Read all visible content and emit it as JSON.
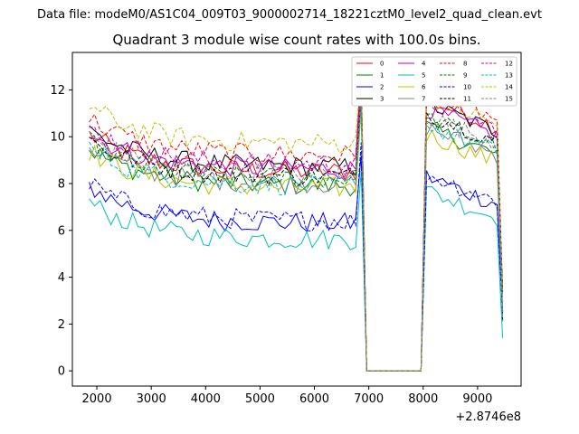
{
  "chart_data": {
    "type": "line",
    "suptitle": "Data file: modeM0/AS1C04_009T03_9000002714_18221cztM0_level2_quad_clean.evt",
    "title": "Quadrant 3 module wise count rates with 100.0s bins.",
    "xlabel": "",
    "ylabel": "",
    "x_offset_label": "+2.8746e8",
    "xlim": [
      1550,
      9800
    ],
    "ylim": [
      -0.65,
      13.6
    ],
    "xticks": [
      2000,
      3000,
      4000,
      5000,
      6000,
      7000,
      8000,
      9000
    ],
    "yticks": [
      0,
      2,
      4,
      6,
      8,
      10,
      12
    ],
    "x_range": {
      "start": 1860,
      "step": 100,
      "bins_first_segment": 50,
      "gap_start": 6960,
      "gap_end": 7960,
      "second_segment_start": 8060,
      "last_x": 9460
    },
    "series": [
      {
        "name": "0",
        "color": "#ff0000",
        "dash": "solid",
        "level1": 8.5,
        "level2": 10.8
      },
      {
        "name": "1",
        "color": "#008000",
        "dash": "solid",
        "level1": 7.9,
        "level2": 9.6
      },
      {
        "name": "2",
        "color": "#0000ff",
        "dash": "solid",
        "level1": 6.3,
        "level2": 7.5
      },
      {
        "name": "3",
        "color": "#000000",
        "dash": "solid",
        "level1": 8.7,
        "level2": 10.6
      },
      {
        "name": "4",
        "color": "#bf00bf",
        "dash": "solid",
        "level1": 8.6,
        "level2": 10.4
      },
      {
        "name": "5",
        "color": "#00bfbf",
        "dash": "solid",
        "level1": 5.6,
        "level2": 6.9
      },
      {
        "name": "6",
        "color": "#bfbf00",
        "dash": "solid",
        "level1": 7.8,
        "level2": 9.3
      },
      {
        "name": "7",
        "color": "#808080",
        "dash": "solid",
        "level1": 8.0,
        "level2": 9.6
      },
      {
        "name": "8",
        "color": "#ff0000",
        "dash": "dashed",
        "level1": 9.2,
        "level2": 11.1
      },
      {
        "name": "9",
        "color": "#008000",
        "dash": "dashed",
        "level1": 8.2,
        "level2": 10.0
      },
      {
        "name": "10",
        "color": "#0000ff",
        "dash": "dashed",
        "level1": 6.4,
        "level2": 7.6
      },
      {
        "name": "11",
        "color": "#000000",
        "dash": "dashed",
        "level1": 8.3,
        "level2": 10.2
      },
      {
        "name": "12",
        "color": "#bf00bf",
        "dash": "dashed",
        "level1": 8.8,
        "level2": 10.7
      },
      {
        "name": "13",
        "color": "#00bfbf",
        "dash": "dashed",
        "level1": 7.9,
        "level2": 9.7
      },
      {
        "name": "14",
        "color": "#bfbf00",
        "dash": "dashed",
        "level1": 9.7,
        "level2": 10.9
      },
      {
        "name": "15",
        "color": "#808080",
        "dash": "dashed",
        "level1": 8.4,
        "level2": 10.1
      }
    ],
    "legend_position": "top-right",
    "legend_columns": 4
  }
}
